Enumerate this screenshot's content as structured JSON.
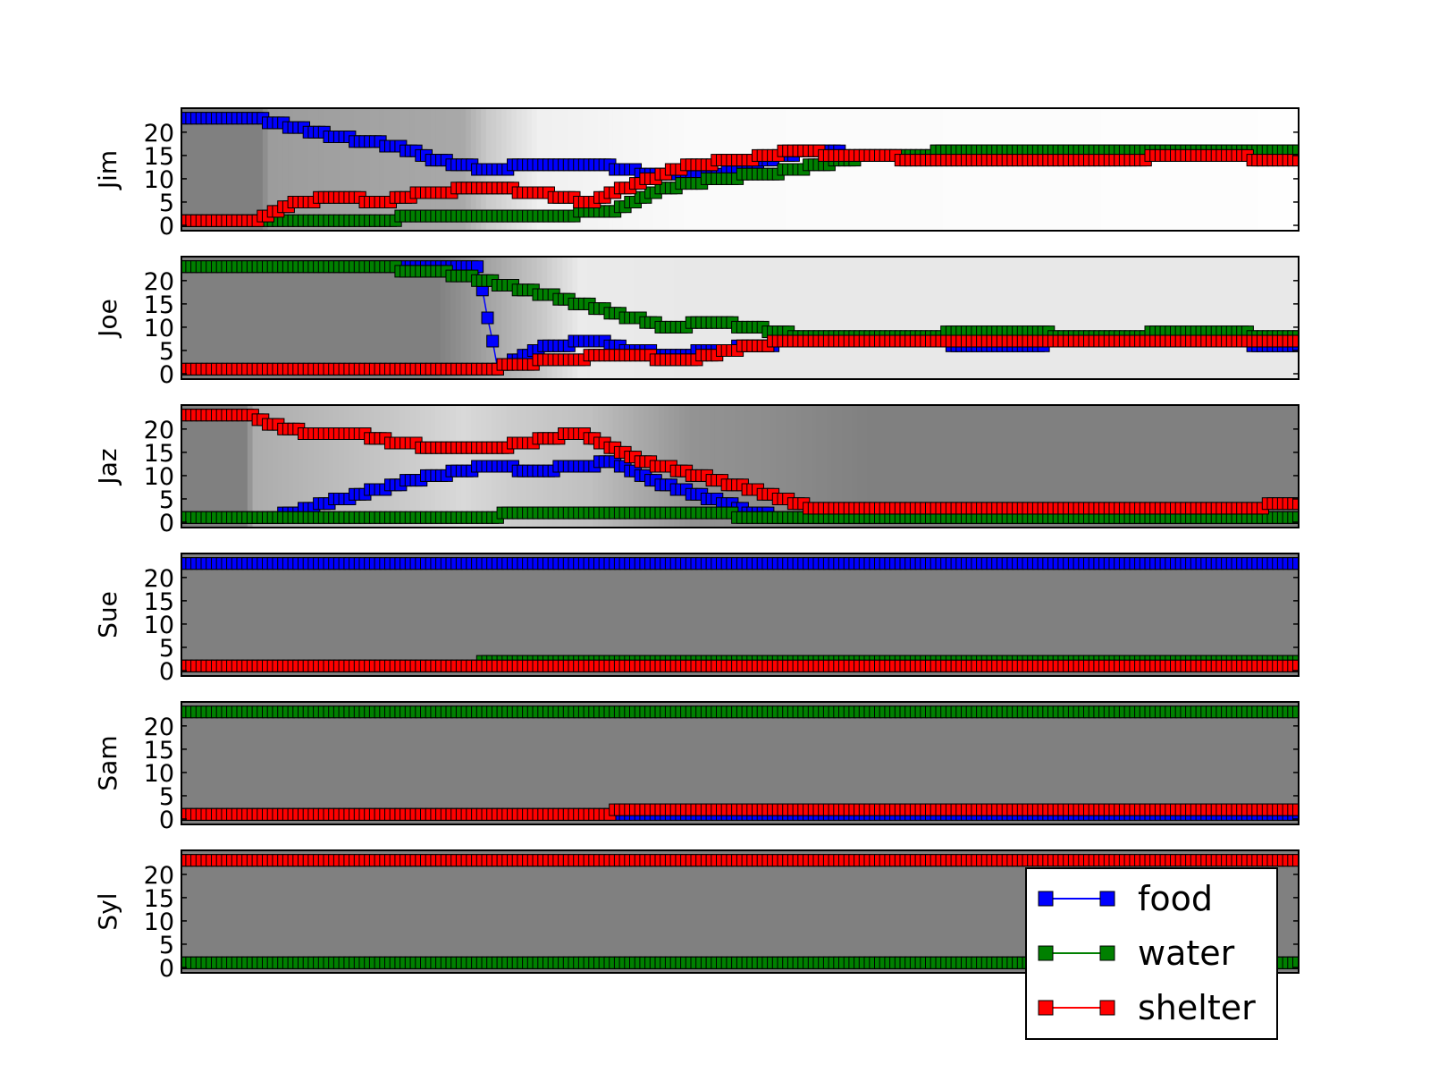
{
  "chart_data": {
    "type": "line",
    "marker": "square",
    "x_points": 220,
    "ylim": [
      0,
      24
    ],
    "yticks": [
      "0",
      "5",
      "10",
      "15",
      "20"
    ],
    "ytick_values": [
      0,
      5,
      10,
      15,
      20
    ],
    "legend": {
      "placement": "lower-right",
      "entries": [
        {
          "label": "food",
          "color": "#0000ff"
        },
        {
          "label": "water",
          "color": "#008000"
        },
        {
          "label": "shelter",
          "color": "#ff0000"
        }
      ]
    },
    "background": "gray heatmap shading",
    "panels": [
      {
        "ylabel": "Jim",
        "shade": [
          [
            0,
            1.0
          ],
          [
            15,
            1.0
          ],
          [
            17,
            0.78
          ],
          [
            55,
            0.68
          ],
          [
            60,
            0.42
          ],
          [
            70,
            0.12
          ],
          [
            100,
            0.04
          ],
          [
            219,
            0.01
          ]
        ],
        "series": [
          {
            "name": "food",
            "points": [
              [
                0,
                23
              ],
              [
                15,
                23
              ],
              [
                22,
                21
              ],
              [
                30,
                19
              ],
              [
                42,
                17
              ],
              [
                50,
                14
              ],
              [
                60,
                12
              ],
              [
                70,
                13
              ],
              [
                82,
                13
              ],
              [
                92,
                11
              ],
              [
                105,
                11
              ],
              [
                115,
                14
              ],
              [
                123,
                16
              ],
              [
                135,
                15
              ],
              [
                160,
                16
              ],
              [
                200,
                16
              ],
              [
                219,
                16
              ]
            ]
          },
          {
            "name": "water",
            "points": [
              [
                0,
                1
              ],
              [
                15,
                1
              ],
              [
                20,
                1
              ],
              [
                40,
                1
              ],
              [
                45,
                2
              ],
              [
                55,
                2
              ],
              [
                70,
                2
              ],
              [
                85,
                3
              ],
              [
                95,
                8
              ],
              [
                105,
                10
              ],
              [
                115,
                11
              ],
              [
                125,
                13
              ],
              [
                135,
                15
              ],
              [
                160,
                16
              ],
              [
                200,
                16
              ],
              [
                219,
                16
              ]
            ]
          },
          {
            "name": "shelter",
            "points": [
              [
                0,
                1
              ],
              [
                15,
                1
              ],
              [
                18,
                3
              ],
              [
                23,
                5
              ],
              [
                30,
                6
              ],
              [
                40,
                5
              ],
              [
                48,
                7
              ],
              [
                60,
                8
              ],
              [
                70,
                7
              ],
              [
                80,
                5
              ],
              [
                92,
                10
              ],
              [
                100,
                13
              ],
              [
                110,
                14
              ],
              [
                120,
                16
              ],
              [
                130,
                15
              ],
              [
                150,
                14
              ],
              [
                180,
                14
              ],
              [
                200,
                15
              ],
              [
                219,
                14
              ]
            ]
          }
        ]
      },
      {
        "ylabel": "Joe",
        "shade": [
          [
            0,
            1.0
          ],
          [
            50,
            1.0
          ],
          [
            60,
            0.72
          ],
          [
            70,
            0.45
          ],
          [
            78,
            0.16
          ],
          [
            100,
            0.18
          ],
          [
            219,
            0.18
          ]
        ],
        "series": [
          {
            "name": "food",
            "points": [
              [
                0,
                23
              ],
              [
                58,
                23
              ],
              [
                62,
                1
              ],
              [
                66,
                3
              ],
              [
                72,
                6
              ],
              [
                82,
                7
              ],
              [
                88,
                5
              ],
              [
                96,
                4
              ],
              [
                105,
                5
              ],
              [
                120,
                7
              ],
              [
                140,
                7
              ],
              [
                160,
                6
              ],
              [
                180,
                7
              ],
              [
                200,
                7
              ],
              [
                219,
                6
              ]
            ]
          },
          {
            "name": "water",
            "points": [
              [
                0,
                23
              ],
              [
                35,
                23
              ],
              [
                50,
                22
              ],
              [
                60,
                20
              ],
              [
                75,
                16
              ],
              [
                85,
                13
              ],
              [
                95,
                10
              ],
              [
                105,
                11
              ],
              [
                112,
                10
              ],
              [
                122,
                8
              ],
              [
                140,
                8
              ],
              [
                160,
                9
              ],
              [
                180,
                8
              ],
              [
                200,
                9
              ],
              [
                219,
                8
              ]
            ]
          },
          {
            "name": "shelter",
            "points": [
              [
                0,
                1
              ],
              [
                60,
                1
              ],
              [
                65,
                2
              ],
              [
                75,
                3
              ],
              [
                85,
                4
              ],
              [
                100,
                3
              ],
              [
                112,
                6
              ],
              [
                120,
                7
              ],
              [
                140,
                7
              ],
              [
                160,
                7
              ],
              [
                180,
                7
              ],
              [
                200,
                7
              ],
              [
                219,
                7
              ]
            ]
          }
        ]
      },
      {
        "ylabel": "Jaz",
        "shade": [
          [
            0,
            1.0
          ],
          [
            12,
            1.0
          ],
          [
            14,
            0.65
          ],
          [
            40,
            0.45
          ],
          [
            55,
            0.3
          ],
          [
            65,
            0.4
          ],
          [
            80,
            0.5
          ],
          [
            100,
            0.85
          ],
          [
            115,
            0.9
          ],
          [
            135,
            1.0
          ],
          [
            219,
            1.0
          ]
        ],
        "series": [
          {
            "name": "food",
            "points": [
              [
                0,
                1
              ],
              [
                10,
                1
              ],
              [
                12,
                1
              ],
              [
                18,
                1
              ],
              [
                22,
                2
              ],
              [
                28,
                4
              ],
              [
                35,
                6
              ],
              [
                42,
                8
              ],
              [
                50,
                10
              ],
              [
                60,
                12
              ],
              [
                70,
                11
              ],
              [
                78,
                12
              ],
              [
                85,
                13
              ],
              [
                88,
                11
              ],
              [
                95,
                8
              ],
              [
                104,
                5
              ],
              [
                112,
                2
              ],
              [
                118,
                1
              ],
              [
                125,
                1
              ],
              [
                219,
                1
              ]
            ]
          },
          {
            "name": "water",
            "points": [
              [
                0,
                1
              ],
              [
                55,
                1
              ],
              [
                60,
                1
              ],
              [
                65,
                2
              ],
              [
                78,
                2
              ],
              [
                82,
                2
              ],
              [
                85,
                2
              ],
              [
                105,
                2
              ],
              [
                112,
                1
              ],
              [
                219,
                1
              ]
            ]
          },
          {
            "name": "shelter",
            "points": [
              [
                0,
                23
              ],
              [
                13,
                23
              ],
              [
                18,
                21
              ],
              [
                25,
                19
              ],
              [
                35,
                19
              ],
              [
                42,
                17
              ],
              [
                50,
                16
              ],
              [
                62,
                16
              ],
              [
                72,
                18
              ],
              [
                78,
                19
              ],
              [
                82,
                17
              ],
              [
                90,
                13
              ],
              [
                98,
                11
              ],
              [
                105,
                9
              ],
              [
                112,
                7
              ],
              [
                118,
                5
              ],
              [
                124,
                3
              ],
              [
                140,
                3
              ],
              [
                200,
                3
              ],
              [
                210,
                3
              ],
              [
                215,
                4
              ],
              [
                219,
                4
              ]
            ]
          }
        ]
      },
      {
        "ylabel": "Sue",
        "shade": [
          [
            0,
            1.0
          ],
          [
            219,
            1.0
          ]
        ],
        "series": [
          {
            "name": "food",
            "points": [
              [
                0,
                23
              ],
              [
                219,
                23
              ]
            ]
          },
          {
            "name": "water",
            "points": [
              [
                0,
                1
              ],
              [
                58,
                1
              ],
              [
                59,
                2
              ],
              [
                219,
                2
              ]
            ]
          },
          {
            "name": "shelter",
            "points": [
              [
                0,
                1
              ],
              [
                219,
                1
              ]
            ]
          }
        ]
      },
      {
        "ylabel": "Sam",
        "shade": [
          [
            0,
            1.0
          ],
          [
            219,
            1.0
          ]
        ],
        "series": [
          {
            "name": "food",
            "points": [
              [
                0,
                1
              ],
              [
                219,
                1
              ]
            ]
          },
          {
            "name": "water",
            "points": [
              [
                0,
                23
              ],
              [
                219,
                23
              ]
            ]
          },
          {
            "name": "shelter",
            "points": [
              [
                0,
                1
              ],
              [
                84,
                1
              ],
              [
                85,
                2
              ],
              [
                219,
                2
              ]
            ]
          }
        ]
      },
      {
        "ylabel": "Syl",
        "shade": [
          [
            0,
            1.0
          ],
          [
            219,
            1.0
          ]
        ],
        "series": [
          {
            "name": "food",
            "points": [
              [
                0,
                1
              ],
              [
                219,
                1
              ]
            ]
          },
          {
            "name": "water",
            "points": [
              [
                0,
                1
              ],
              [
                219,
                1
              ]
            ]
          },
          {
            "name": "shelter",
            "points": [
              [
                0,
                23
              ],
              [
                219,
                23
              ]
            ]
          }
        ]
      }
    ]
  }
}
